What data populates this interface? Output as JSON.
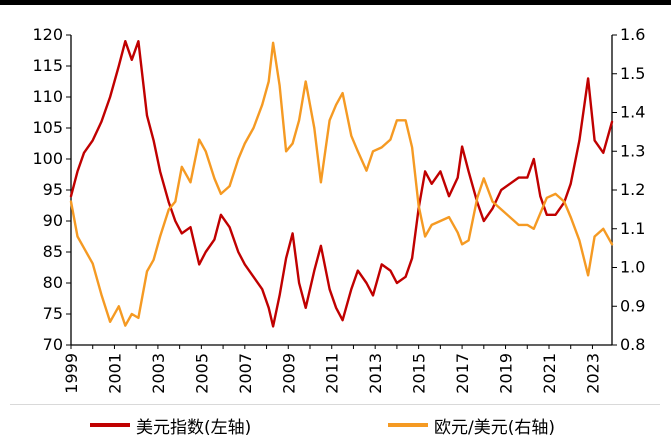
{
  "chart_data": {
    "type": "line",
    "title": "",
    "xlabel": "",
    "x_range": [
      1999,
      2023.9
    ],
    "x_ticks": [
      "1999",
      "2001",
      "2003",
      "2005",
      "2007",
      "2009",
      "2011",
      "2013",
      "2015",
      "2017",
      "2019",
      "2021",
      "2023"
    ],
    "y_left": {
      "label": "",
      "range": [
        70,
        120
      ],
      "ticks": [
        "70",
        "75",
        "80",
        "85",
        "90",
        "95",
        "100",
        "105",
        "110",
        "115",
        "120"
      ]
    },
    "y_right": {
      "label": "",
      "range": [
        0.8,
        1.6
      ],
      "ticks": [
        "0.8",
        "0.9",
        "1.0",
        "1.1",
        "1.2",
        "1.3",
        "1.4",
        "1.5",
        "1.6"
      ]
    },
    "grid": false,
    "legend_position": "bottom",
    "series": [
      {
        "name": "美元指数(左轴)",
        "axis": "left",
        "color": "#c00000",
        "x": [
          1999.0,
          1999.3,
          1999.6,
          2000.0,
          2000.4,
          2000.8,
          2001.2,
          2001.5,
          2001.8,
          2002.1,
          2002.5,
          2002.8,
          2003.1,
          2003.5,
          2003.8,
          2004.1,
          2004.5,
          2004.9,
          2005.2,
          2005.6,
          2005.9,
          2006.3,
          2006.7,
          2007.0,
          2007.4,
          2007.8,
          2008.1,
          2008.3,
          2008.6,
          2008.9,
          2009.2,
          2009.5,
          2009.8,
          2010.2,
          2010.5,
          2010.9,
          2011.2,
          2011.5,
          2011.9,
          2012.2,
          2012.6,
          2012.9,
          2013.3,
          2013.7,
          2014.0,
          2014.4,
          2014.7,
          2015.0,
          2015.3,
          2015.6,
          2016.0,
          2016.4,
          2016.8,
          2017.0,
          2017.3,
          2017.7,
          2018.0,
          2018.4,
          2018.8,
          2019.2,
          2019.6,
          2020.0,
          2020.3,
          2020.6,
          2020.9,
          2021.3,
          2021.7,
          2022.0,
          2022.4,
          2022.8,
          2023.1,
          2023.5,
          2023.9
        ],
        "y": [
          94,
          98,
          101,
          103,
          106,
          110,
          115,
          119,
          116,
          119,
          107,
          103,
          98,
          93,
          90,
          88,
          89,
          83,
          85,
          87,
          91,
          89,
          85,
          83,
          81,
          79,
          76,
          73,
          78,
          84,
          88,
          80,
          76,
          82,
          86,
          79,
          76,
          74,
          79,
          82,
          80,
          78,
          83,
          82,
          80,
          81,
          84,
          92,
          98,
          96,
          98,
          94,
          97,
          102,
          98,
          93,
          90,
          92,
          95,
          96,
          97,
          97,
          100,
          94,
          91,
          91,
          93,
          96,
          103,
          113,
          103,
          101,
          106
        ],
        "note": "read off left axis"
      },
      {
        "name": "欧元/美元(右轴)",
        "axis": "right",
        "color": "#f59a23",
        "x": [
          1999.0,
          1999.3,
          1999.6,
          2000.0,
          2000.4,
          2000.8,
          2001.2,
          2001.5,
          2001.8,
          2002.1,
          2002.5,
          2002.8,
          2003.1,
          2003.5,
          2003.8,
          2004.1,
          2004.5,
          2004.9,
          2005.2,
          2005.6,
          2005.9,
          2006.3,
          2006.7,
          2007.0,
          2007.4,
          2007.8,
          2008.1,
          2008.3,
          2008.6,
          2008.9,
          2009.2,
          2009.5,
          2009.8,
          2010.2,
          2010.5,
          2010.9,
          2011.2,
          2011.5,
          2011.9,
          2012.2,
          2012.6,
          2012.9,
          2013.3,
          2013.7,
          2014.0,
          2014.4,
          2014.7,
          2015.0,
          2015.3,
          2015.6,
          2016.0,
          2016.4,
          2016.8,
          2017.0,
          2017.3,
          2017.7,
          2018.0,
          2018.4,
          2018.8,
          2019.2,
          2019.6,
          2020.0,
          2020.3,
          2020.6,
          2020.9,
          2021.3,
          2021.7,
          2022.0,
          2022.4,
          2022.8,
          2023.1,
          2023.5,
          2023.9
        ],
        "y": [
          1.17,
          1.08,
          1.05,
          1.01,
          0.93,
          0.86,
          0.9,
          0.85,
          0.88,
          0.87,
          0.99,
          1.02,
          1.08,
          1.15,
          1.17,
          1.26,
          1.22,
          1.33,
          1.3,
          1.23,
          1.19,
          1.21,
          1.28,
          1.32,
          1.36,
          1.42,
          1.48,
          1.58,
          1.47,
          1.3,
          1.32,
          1.38,
          1.48,
          1.36,
          1.22,
          1.38,
          1.42,
          1.45,
          1.34,
          1.3,
          1.25,
          1.3,
          1.31,
          1.33,
          1.38,
          1.38,
          1.31,
          1.16,
          1.08,
          1.11,
          1.12,
          1.13,
          1.09,
          1.06,
          1.07,
          1.18,
          1.23,
          1.17,
          1.15,
          1.13,
          1.11,
          1.11,
          1.1,
          1.14,
          1.18,
          1.19,
          1.17,
          1.13,
          1.07,
          0.98,
          1.08,
          1.1,
          1.06
        ],
        "note": "read off right axis"
      }
    ]
  },
  "legend": {
    "item1": "美元指数(左轴)",
    "item2": "欧元/美元(右轴)"
  },
  "colors": {
    "usd_index": "#c00000",
    "eur_usd": "#f59a23",
    "axis": "#000000"
  }
}
